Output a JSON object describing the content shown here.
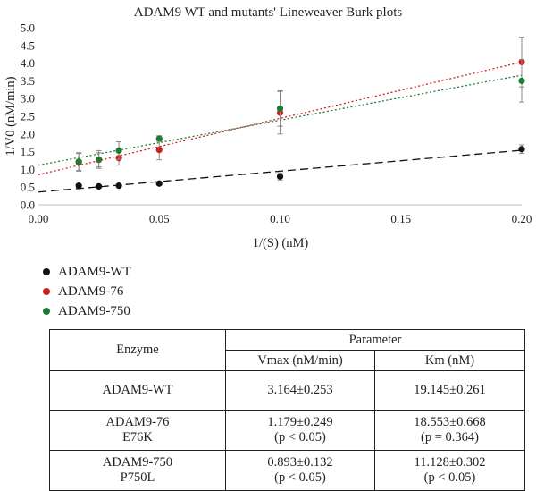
{
  "chart_data": {
    "type": "scatter",
    "title": "ADAM9 WT and mutants' Lineweaver Burk plots",
    "xlabel": "1/(S) (nM)",
    "ylabel": "1/V0 (nM/min)",
    "xlim": [
      0,
      0.2
    ],
    "ylim": [
      0,
      5
    ],
    "x_ticks": [
      "0.00",
      "0.05",
      "0.10",
      "0.15",
      "0.20"
    ],
    "y_ticks": [
      "0.0",
      "0.5",
      "1.0",
      "1.5",
      "2.0",
      "2.5",
      "3.0",
      "3.5",
      "4.0",
      "4.5",
      "5.0"
    ],
    "grid": false,
    "legend_position": "bottom-left",
    "series": [
      {
        "name": "ADAM9-WT",
        "color": "#111111",
        "trendline": "dashed",
        "x": [
          0.0167,
          0.025,
          0.0333,
          0.05,
          0.1,
          0.2
        ],
        "y": [
          0.54,
          0.52,
          0.54,
          0.6,
          0.8,
          1.57
        ],
        "error": [
          0.05,
          0.04,
          0.04,
          0.05,
          0.1,
          0.12
        ],
        "fit": [
          0.36,
          5.9
        ]
      },
      {
        "name": "ADAM9-76",
        "color": "#cc1f1f",
        "trendline": "dotted",
        "x": [
          0.0167,
          0.025,
          0.0333,
          0.05,
          0.1,
          0.2
        ],
        "y": [
          1.2,
          1.27,
          1.32,
          1.55,
          2.6,
          4.03
        ],
        "error": [
          0.25,
          0.2,
          0.2,
          0.28,
          0.6,
          0.7
        ],
        "fit": [
          0.85,
          15.9
        ]
      },
      {
        "name": "ADAM9-750",
        "color": "#1e7a32",
        "trendline": "dotted",
        "x": [
          0.0167,
          0.025,
          0.0333,
          0.05,
          0.1,
          0.2
        ],
        "y": [
          1.22,
          1.28,
          1.53,
          1.87,
          2.72,
          3.5
        ],
        "error": [
          0.25,
          0.25,
          0.25,
          0.08,
          0.5,
          0.6
        ],
        "fit": [
          1.12,
          12.7
        ]
      }
    ]
  },
  "table": {
    "header_enzyme": "Enzyme",
    "header_parameter": "Parameter",
    "header_vmax": "Vmax (nM/min)",
    "header_km": "Km (nM)",
    "rows": [
      {
        "enzyme": "ADAM9-WT",
        "mutation": "",
        "vmax": "3.164±0.253",
        "vmax_p": "",
        "km": "19.145±0.261",
        "km_p": ""
      },
      {
        "enzyme": "ADAM9-76",
        "mutation": "E76K",
        "vmax": "1.179±0.249",
        "vmax_p": "(p < 0.05)",
        "km": "18.553±0.668",
        "km_p": "(p = 0.364)"
      },
      {
        "enzyme": "ADAM9-750",
        "mutation": "P750L",
        "vmax": "0.893±0.132",
        "vmax_p": "(p < 0.05)",
        "km": "11.128±0.302",
        "km_p": "(p < 0.05)"
      }
    ]
  }
}
